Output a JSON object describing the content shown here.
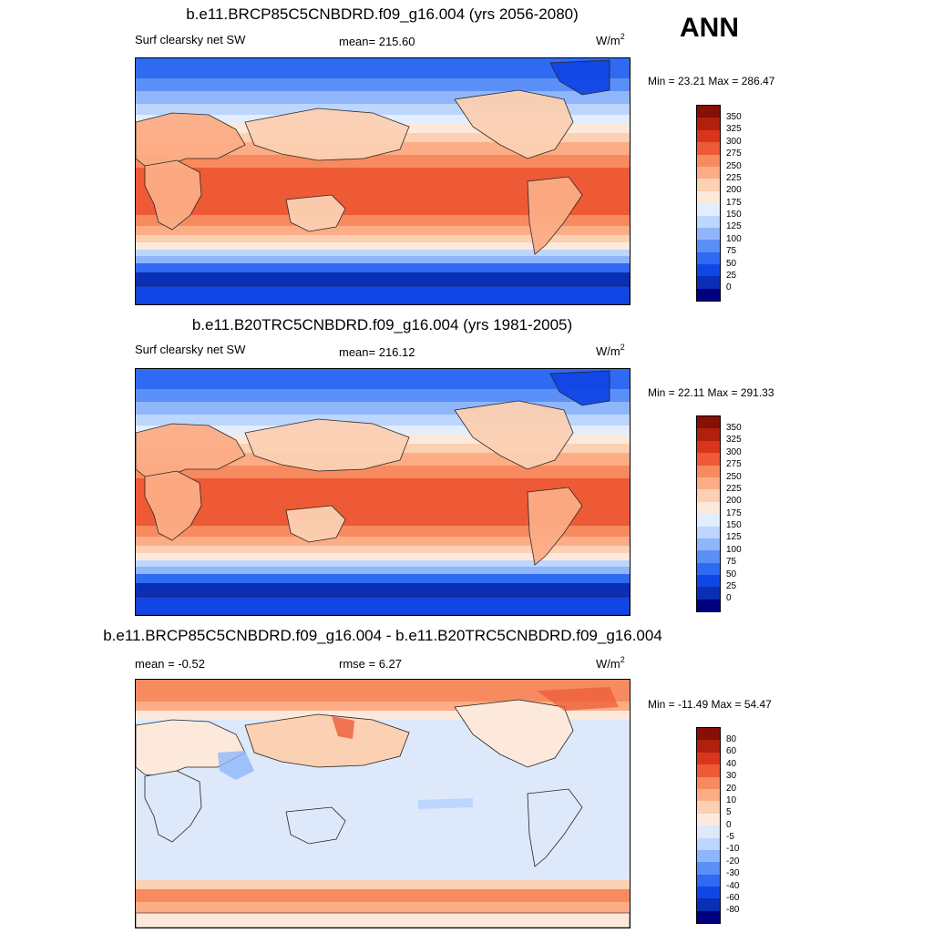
{
  "header": {
    "season": "ANN"
  },
  "panels": [
    {
      "id": "future",
      "title": "b.e11.BRCP85C5CNBDRD.f09_g16.004 (yrs 2056-2080)",
      "left_label": "Surf clearsky net SW",
      "mid_label": "mean= 215.60",
      "units_base": "W/m",
      "units_exp": "2",
      "min_max": "Min =  23.21 Max = 286.47",
      "colorbar_labels": [
        "350",
        "325",
        "300",
        "275",
        "250",
        "225",
        "200",
        "175",
        "150",
        "125",
        "100",
        "75",
        "50",
        "25",
        "0"
      ]
    },
    {
      "id": "present",
      "title": "b.e11.B20TRC5CNBDRD.f09_g16.004 (yrs 1981-2005)",
      "left_label": "Surf clearsky net SW",
      "mid_label": "mean= 216.12",
      "units_base": "W/m",
      "units_exp": "2",
      "min_max": "Min =  22.11 Max = 291.33",
      "colorbar_labels": [
        "350",
        "325",
        "300",
        "275",
        "250",
        "225",
        "200",
        "175",
        "150",
        "125",
        "100",
        "75",
        "50",
        "25",
        "0"
      ]
    },
    {
      "id": "difference",
      "title": "b.e11.BRCP85C5CNBDRD.f09_g16.004 - b.e11.B20TRC5CNBDRD.f09_g16.004",
      "left_label": "mean =  -0.52",
      "mid_label": "rmse =   6.27",
      "units_base": "W/m",
      "units_exp": "2",
      "min_max": "Min = -11.49 Max =  54.47",
      "colorbar_labels": [
        "80",
        "60",
        "40",
        "30",
        "20",
        "10",
        "5",
        "0",
        "-5",
        "-10",
        "-20",
        "-30",
        "-40",
        "-60",
        "-80"
      ]
    }
  ],
  "chart_data": [
    {
      "type": "heatmap",
      "title": "b.e11.BRCP85C5CNBDRD.f09_g16.004 (yrs 2056-2080)",
      "variable": "Surf clearsky net SW",
      "units": "W/m2",
      "mean": 215.6,
      "min": 23.21,
      "max": 286.47,
      "levels": [
        0,
        25,
        50,
        75,
        100,
        125,
        150,
        175,
        200,
        225,
        250,
        275,
        300,
        325,
        350
      ],
      "colors": [
        "#00007f",
        "#0a2fb5",
        "#1146e6",
        "#2f6af2",
        "#5b8ff8",
        "#8fb6fb",
        "#bcd6fd",
        "#e2edfd",
        "#fde9dc",
        "#fcd0b3",
        "#fcad86",
        "#f78b5f",
        "#ed5a35",
        "#d8361a",
        "#b1200d",
        "#860f06"
      ]
    },
    {
      "type": "heatmap",
      "title": "b.e11.B20TRC5CNBDRD.f09_g16.004 (yrs 1981-2005)",
      "variable": "Surf clearsky net SW",
      "units": "W/m2",
      "mean": 216.12,
      "min": 22.11,
      "max": 291.33,
      "levels": [
        0,
        25,
        50,
        75,
        100,
        125,
        150,
        175,
        200,
        225,
        250,
        275,
        300,
        325,
        350
      ],
      "colors": [
        "#00007f",
        "#0a2fb5",
        "#1146e6",
        "#2f6af2",
        "#5b8ff8",
        "#8fb6fb",
        "#bcd6fd",
        "#e2edfd",
        "#fde9dc",
        "#fcd0b3",
        "#fcad86",
        "#f78b5f",
        "#ed5a35",
        "#d8361a",
        "#b1200d",
        "#860f06"
      ]
    },
    {
      "type": "heatmap",
      "title": "b.e11.BRCP85C5CNBDRD.f09_g16.004 - b.e11.B20TRC5CNBDRD.f09_g16.004",
      "units": "W/m2",
      "mean": -0.52,
      "rmse": 6.27,
      "min": -11.49,
      "max": 54.47,
      "levels": [
        -80,
        -60,
        -40,
        -30,
        -20,
        -10,
        -5,
        0,
        5,
        10,
        20,
        30,
        40,
        60,
        80
      ],
      "colors": [
        "#00007f",
        "#0a2fb5",
        "#1146e6",
        "#2f6af2",
        "#5b8ff8",
        "#8fb6fb",
        "#bcd6fd",
        "#dde9fa",
        "#fde9dc",
        "#fcd0b3",
        "#fcad86",
        "#f78b5f",
        "#ed5a35",
        "#d8361a",
        "#b1200d",
        "#860f06"
      ]
    }
  ]
}
